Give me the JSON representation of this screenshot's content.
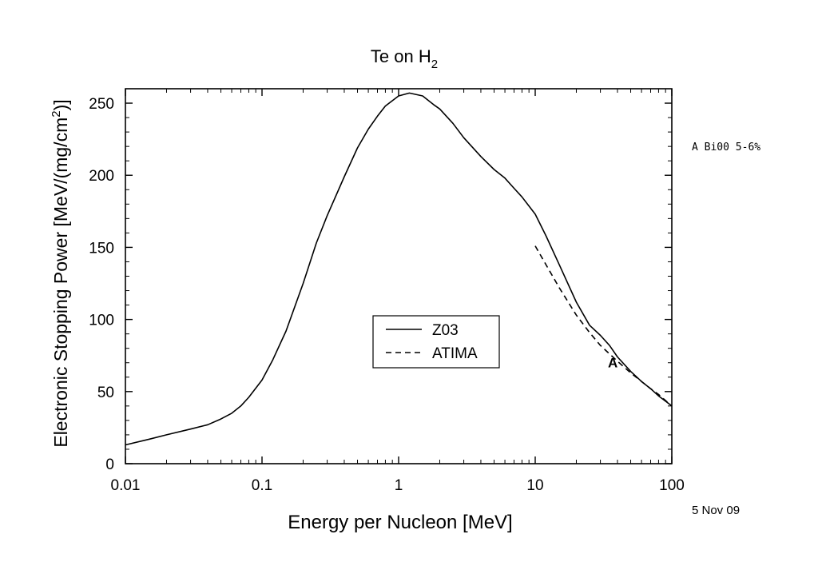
{
  "chart_data": {
    "type": "line",
    "title": "Te on H",
    "title_subscript": "2",
    "xlabel": "Energy per Nucleon [MeV]",
    "ylabel_main": "Electronic Stopping Power [MeV/(mg/cm",
    "ylabel_superscript": "2",
    "ylabel_close": ")]",
    "x_scale": "log",
    "xlim": [
      0.01,
      100
    ],
    "ylim": [
      0,
      260
    ],
    "x_ticks": [
      {
        "value": 0.01,
        "label": "0.01"
      },
      {
        "value": 0.1,
        "label": "0.1"
      },
      {
        "value": 1,
        "label": "1"
      },
      {
        "value": 10,
        "label": "10"
      },
      {
        "value": 100,
        "label": "100"
      }
    ],
    "y_ticks": [
      {
        "value": 0,
        "label": "0"
      },
      {
        "value": 50,
        "label": "50"
      },
      {
        "value": 100,
        "label": "100"
      },
      {
        "value": 150,
        "label": "150"
      },
      {
        "value": 200,
        "label": "200"
      },
      {
        "value": 250,
        "label": "250"
      }
    ],
    "grid": false,
    "legend_position": "center",
    "series": [
      {
        "name": "Z03",
        "style": "solid",
        "points": [
          [
            0.01,
            13
          ],
          [
            0.015,
            17
          ],
          [
            0.02,
            20
          ],
          [
            0.03,
            24
          ],
          [
            0.04,
            27
          ],
          [
            0.05,
            31
          ],
          [
            0.06,
            35
          ],
          [
            0.07,
            40
          ],
          [
            0.08,
            46
          ],
          [
            0.1,
            58
          ],
          [
            0.12,
            72
          ],
          [
            0.15,
            92
          ],
          [
            0.2,
            125
          ],
          [
            0.25,
            153
          ],
          [
            0.3,
            172
          ],
          [
            0.4,
            199
          ],
          [
            0.5,
            219
          ],
          [
            0.6,
            232
          ],
          [
            0.7,
            241
          ],
          [
            0.8,
            248
          ],
          [
            1.0,
            255
          ],
          [
            1.2,
            257
          ],
          [
            1.5,
            255
          ],
          [
            1.8,
            249
          ],
          [
            2.0,
            246
          ],
          [
            2.5,
            236
          ],
          [
            3.0,
            226
          ],
          [
            4.0,
            213
          ],
          [
            5.0,
            204
          ],
          [
            6.0,
            198
          ],
          [
            7.0,
            191
          ],
          [
            8.0,
            185
          ],
          [
            10.0,
            173
          ],
          [
            12.0,
            158
          ],
          [
            15.0,
            138
          ],
          [
            20.0,
            112
          ],
          [
            25.0,
            96
          ],
          [
            30.0,
            89
          ],
          [
            35.0,
            82
          ],
          [
            40.0,
            74
          ],
          [
            50.0,
            64
          ],
          [
            60.0,
            57
          ],
          [
            70.0,
            52
          ],
          [
            80.0,
            47
          ],
          [
            100.0,
            40
          ]
        ]
      },
      {
        "name": "ATIMA",
        "style": "dashed",
        "points": [
          [
            10.0,
            151
          ],
          [
            12.0,
            138
          ],
          [
            15.0,
            122
          ],
          [
            20.0,
            103
          ],
          [
            25.0,
            91
          ],
          [
            30.0,
            82
          ],
          [
            40.0,
            71
          ],
          [
            50.0,
            63
          ],
          [
            60.0,
            57
          ],
          [
            70.0,
            52
          ],
          [
            80.0,
            48
          ],
          [
            100.0,
            40
          ]
        ]
      }
    ],
    "data_markers": [
      {
        "label": "A",
        "x": 37,
        "y": 70
      }
    ],
    "annotations": {
      "reference": "A Bi00 5-6%",
      "date": "5 Nov 09"
    }
  }
}
